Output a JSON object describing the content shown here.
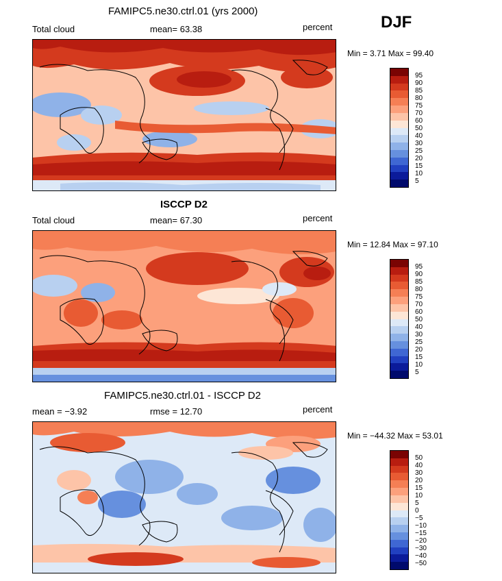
{
  "season": "DJF",
  "panels": [
    {
      "title": "FAMIPC5.ne30.ctrl.01 (yrs 2000)",
      "left_label": "Total cloud",
      "center_label": "mean=  63.38",
      "units": "percent",
      "minmax": "Min =    3.71  Max =   99.40",
      "colorbar_labels": [
        "95",
        "90",
        "85",
        "80",
        "75",
        "70",
        "60",
        "50",
        "40",
        "30",
        "25",
        "20",
        "15",
        "10",
        "5"
      ]
    },
    {
      "title": "ISCCP D2",
      "left_label": "Total cloud",
      "center_label": "mean=  67.30",
      "units": "percent",
      "minmax": "Min =   12.84  Max =   97.10",
      "colorbar_labels": [
        "95",
        "90",
        "85",
        "80",
        "75",
        "70",
        "60",
        "50",
        "40",
        "30",
        "25",
        "20",
        "15",
        "10",
        "5"
      ]
    },
    {
      "title": "FAMIPC5.ne30.ctrl.01 - ISCCP D2",
      "left_label": "mean =   −3.92",
      "center_label": "rmse =   12.70",
      "units": "percent",
      "minmax": "Min = −44.32  Max =   53.01",
      "colorbar_labels": [
        "50",
        "40",
        "30",
        "20",
        "15",
        "10",
        "5",
        "0",
        "−5",
        "−10",
        "−15",
        "−20",
        "−30",
        "−40",
        "−50"
      ]
    }
  ],
  "colors": {
    "scale": [
      "#7a0403",
      "#b81d10",
      "#d43a1e",
      "#e85b33",
      "#f57f55",
      "#fca07c",
      "#fdc4a8",
      "#fde6d6",
      "#dde9f7",
      "#b8d0f0",
      "#8fb2e8",
      "#6690de",
      "#3f67d3",
      "#2140c0",
      "#0b1b9a",
      "#000a6c"
    ]
  }
}
